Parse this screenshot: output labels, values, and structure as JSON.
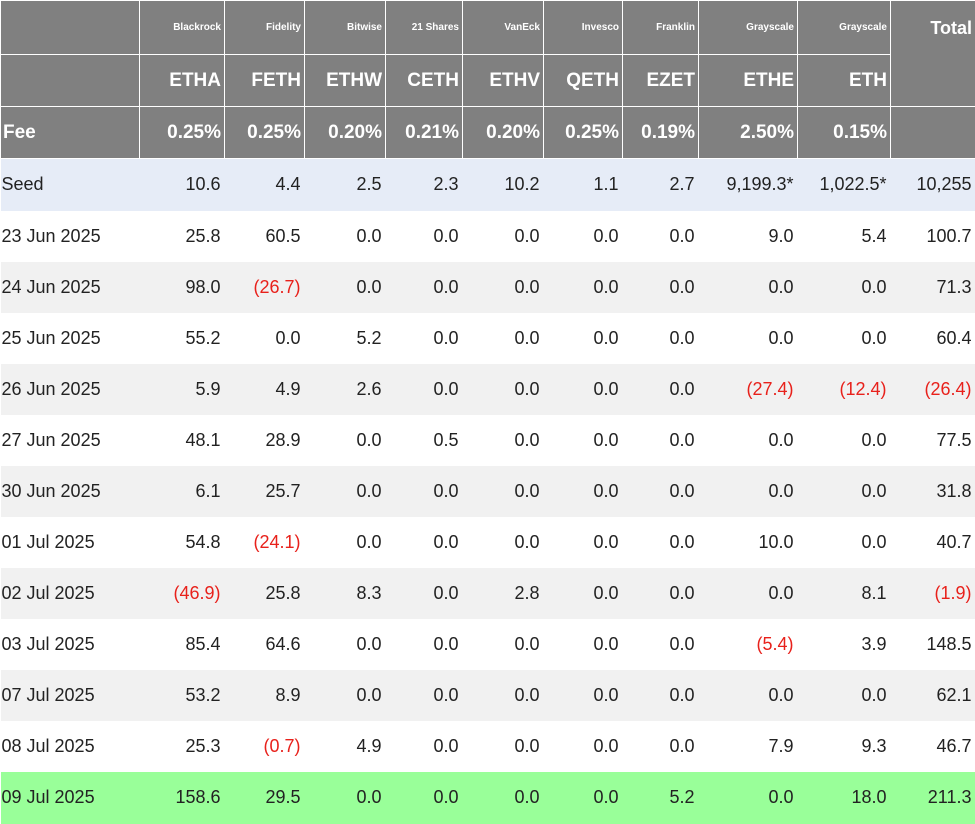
{
  "table": {
    "issuers": [
      "Blackrock",
      "Fidelity",
      "Bitwise",
      "21 Shares",
      "VanEck",
      "Invesco",
      "Franklin",
      "Grayscale",
      "Grayscale"
    ],
    "total_label": "Total",
    "tickers": [
      "ETHA",
      "FETH",
      "ETHW",
      "CETH",
      "ETHV",
      "QETH",
      "EZET",
      "ETHE",
      "ETH"
    ],
    "fee_label": "Fee",
    "fees": [
      "0.25%",
      "0.25%",
      "0.20%",
      "0.21%",
      "0.20%",
      "0.25%",
      "0.19%",
      "2.50%",
      "0.15%"
    ],
    "rows": [
      {
        "label": "Seed",
        "values": [
          "10.6",
          "4.4",
          "2.5",
          "2.3",
          "10.2",
          "1.1",
          "2.7",
          "9,199.3*",
          "1,022.5*",
          "10,255"
        ]
      },
      {
        "label": "23 Jun 2025",
        "values": [
          "25.8",
          "60.5",
          "0.0",
          "0.0",
          "0.0",
          "0.0",
          "0.0",
          "9.0",
          "5.4",
          "100.7"
        ]
      },
      {
        "label": "24 Jun 2025",
        "values": [
          "98.0",
          "(26.7)",
          "0.0",
          "0.0",
          "0.0",
          "0.0",
          "0.0",
          "0.0",
          "0.0",
          "71.3"
        ]
      },
      {
        "label": "25 Jun 2025",
        "values": [
          "55.2",
          "0.0",
          "5.2",
          "0.0",
          "0.0",
          "0.0",
          "0.0",
          "0.0",
          "0.0",
          "60.4"
        ]
      },
      {
        "label": "26 Jun 2025",
        "values": [
          "5.9",
          "4.9",
          "2.6",
          "0.0",
          "0.0",
          "0.0",
          "0.0",
          "(27.4)",
          "(12.4)",
          "(26.4)"
        ]
      },
      {
        "label": "27 Jun 2025",
        "values": [
          "48.1",
          "28.9",
          "0.0",
          "0.5",
          "0.0",
          "0.0",
          "0.0",
          "0.0",
          "0.0",
          "77.5"
        ]
      },
      {
        "label": "30 Jun 2025",
        "values": [
          "6.1",
          "25.7",
          "0.0",
          "0.0",
          "0.0",
          "0.0",
          "0.0",
          "0.0",
          "0.0",
          "31.8"
        ]
      },
      {
        "label": "01 Jul 2025",
        "values": [
          "54.8",
          "(24.1)",
          "0.0",
          "0.0",
          "0.0",
          "0.0",
          "0.0",
          "10.0",
          "0.0",
          "40.7"
        ]
      },
      {
        "label": "02 Jul 2025",
        "values": [
          "(46.9)",
          "25.8",
          "8.3",
          "0.0",
          "2.8",
          "0.0",
          "0.0",
          "0.0",
          "8.1",
          "(1.9)"
        ]
      },
      {
        "label": "03 Jul 2025",
        "values": [
          "85.4",
          "64.6",
          "0.0",
          "0.0",
          "0.0",
          "0.0",
          "0.0",
          "(5.4)",
          "3.9",
          "148.5"
        ]
      },
      {
        "label": "07 Jul 2025",
        "values": [
          "53.2",
          "8.9",
          "0.0",
          "0.0",
          "0.0",
          "0.0",
          "0.0",
          "0.0",
          "0.0",
          "62.1"
        ]
      },
      {
        "label": "08 Jul 2025",
        "values": [
          "25.3",
          "(0.7)",
          "4.9",
          "0.0",
          "0.0",
          "0.0",
          "0.0",
          "7.9",
          "9.3",
          "46.7"
        ]
      },
      {
        "label": "09 Jul 2025",
        "values": [
          "158.6",
          "29.5",
          "0.0",
          "0.0",
          "0.0",
          "0.0",
          "5.2",
          "0.0",
          "18.0",
          "211.3"
        ]
      }
    ],
    "colors": {
      "header_bg": "#808080",
      "header_text": "#ffffff",
      "seed_row_bg": "#e6ecf7",
      "stripe_bg": "#f1f1f1",
      "highlight_row_bg": "#99ff99",
      "negative_text": "#e8211b"
    }
  }
}
